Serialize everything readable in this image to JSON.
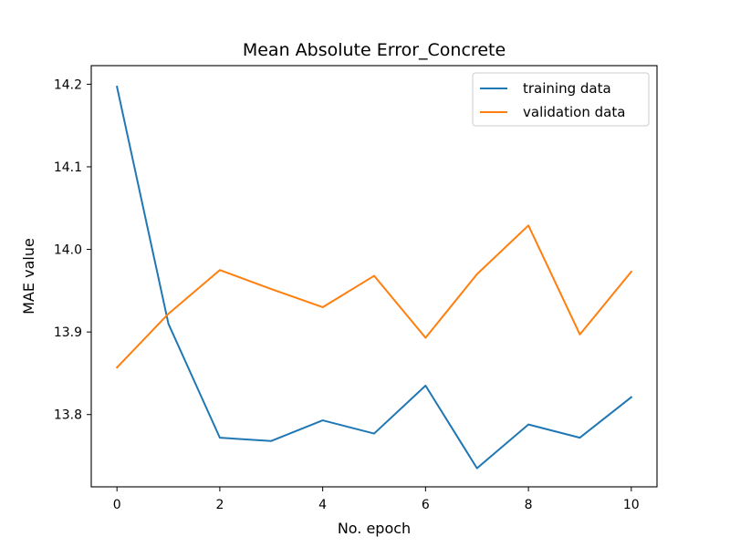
{
  "chart_data": {
    "type": "line",
    "title": "Mean Absolute Error_Concrete",
    "xlabel": "No. epoch",
    "ylabel": "MAE value",
    "x": [
      0,
      1,
      2,
      3,
      4,
      5,
      6,
      7,
      8,
      9,
      10
    ],
    "xlim": [
      -0.5,
      10.5
    ],
    "ylim": [
      13.7125,
      14.2225
    ],
    "xticks": [
      0,
      2,
      4,
      6,
      8,
      10
    ],
    "xtick_labels": [
      "0",
      "2",
      "4",
      "6",
      "8",
      "10"
    ],
    "yticks": [
      13.8,
      13.9,
      14.0,
      14.1,
      14.2
    ],
    "ytick_labels": [
      "13.8",
      "13.9",
      "14.0",
      "14.1",
      "14.2"
    ],
    "grid": false,
    "legend_position": "top-right",
    "series": [
      {
        "name": "training data",
        "color": "#1f77b4",
        "values": [
          14.197,
          13.91,
          13.772,
          13.768,
          13.793,
          13.777,
          13.835,
          13.735,
          13.788,
          13.772,
          13.821
        ]
      },
      {
        "name": "validation data",
        "color": "#ff7f0e",
        "values": [
          13.857,
          13.922,
          13.975,
          13.952,
          13.93,
          13.968,
          13.893,
          13.97,
          14.029,
          13.897,
          13.973
        ]
      }
    ]
  }
}
